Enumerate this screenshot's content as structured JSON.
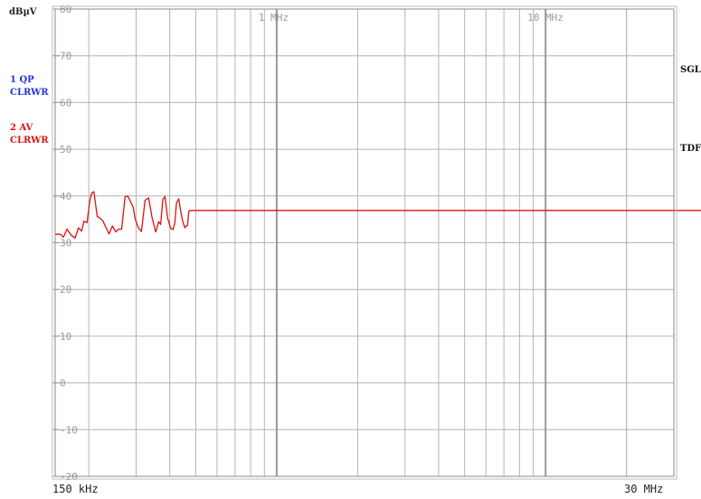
{
  "chart_data": {
    "type": "line",
    "title": "",
    "ylabel": "dBµV",
    "ylim": [
      -20,
      80
    ],
    "x_start_label": "150 kHz",
    "x_end_label": "30 MHz",
    "x_range_hz": [
      150000,
      30000000
    ],
    "x_scale": "log",
    "grid": true,
    "y_ticks": [
      "80",
      "70",
      "60",
      "50",
      "40",
      "30",
      "20",
      "10",
      "0",
      "-10",
      "-20"
    ],
    "x_ticks": [
      "1 MHz",
      "10 MHz"
    ],
    "legend": [
      {
        "index": "1",
        "detector": "QP",
        "mode": "CLRWR",
        "color": "#2233dd"
      },
      {
        "index": "2",
        "detector": "AV",
        "mode": "CLRWR",
        "color": "#dd1111"
      }
    ],
    "right_labels": [
      "SGL",
      "TDF"
    ],
    "series": [
      {
        "name": "AV",
        "color": "#dd1111",
        "x_khz": [
          150,
          157,
          161,
          166,
          172,
          178,
          183,
          188,
          192,
          197,
          202,
          205,
          209,
          215,
          220,
          226,
          232,
          238,
          245,
          252,
          258,
          265,
          273,
          280,
          287,
          293,
          297,
          301,
          306,
          314,
          324,
          334,
          344,
          355,
          364,
          370,
          377,
          384,
          393,
          403,
          412,
          418,
          424,
          432,
          440,
          447,
          455,
          461,
          466,
          471,
          476,
          480,
          487,
          497,
          507,
          516,
          522,
          30000
        ],
        "y": [
          31.8,
          31.8,
          31.2,
          32.9,
          31.6,
          31.0,
          33.2,
          32.5,
          34.6,
          34.3,
          39.1,
          40.6,
          40.9,
          35.6,
          35.3,
          34.6,
          33.2,
          31.9,
          33.6,
          32.3,
          32.9,
          32.9,
          39.9,
          39.9,
          38.6,
          37.5,
          35.3,
          34.3,
          33.2,
          32.4,
          39.1,
          39.6,
          35.3,
          32.3,
          34.5,
          33.9,
          39.2,
          39.9,
          35.3,
          33.1,
          32.8,
          34.3,
          38.5,
          39.4,
          36.6,
          34.6,
          33.2,
          33.6,
          33.7,
          36.7,
          36.9,
          36.9,
          36.9,
          36.9,
          36.9,
          36.9,
          36.9,
          36.9
        ]
      }
    ]
  }
}
